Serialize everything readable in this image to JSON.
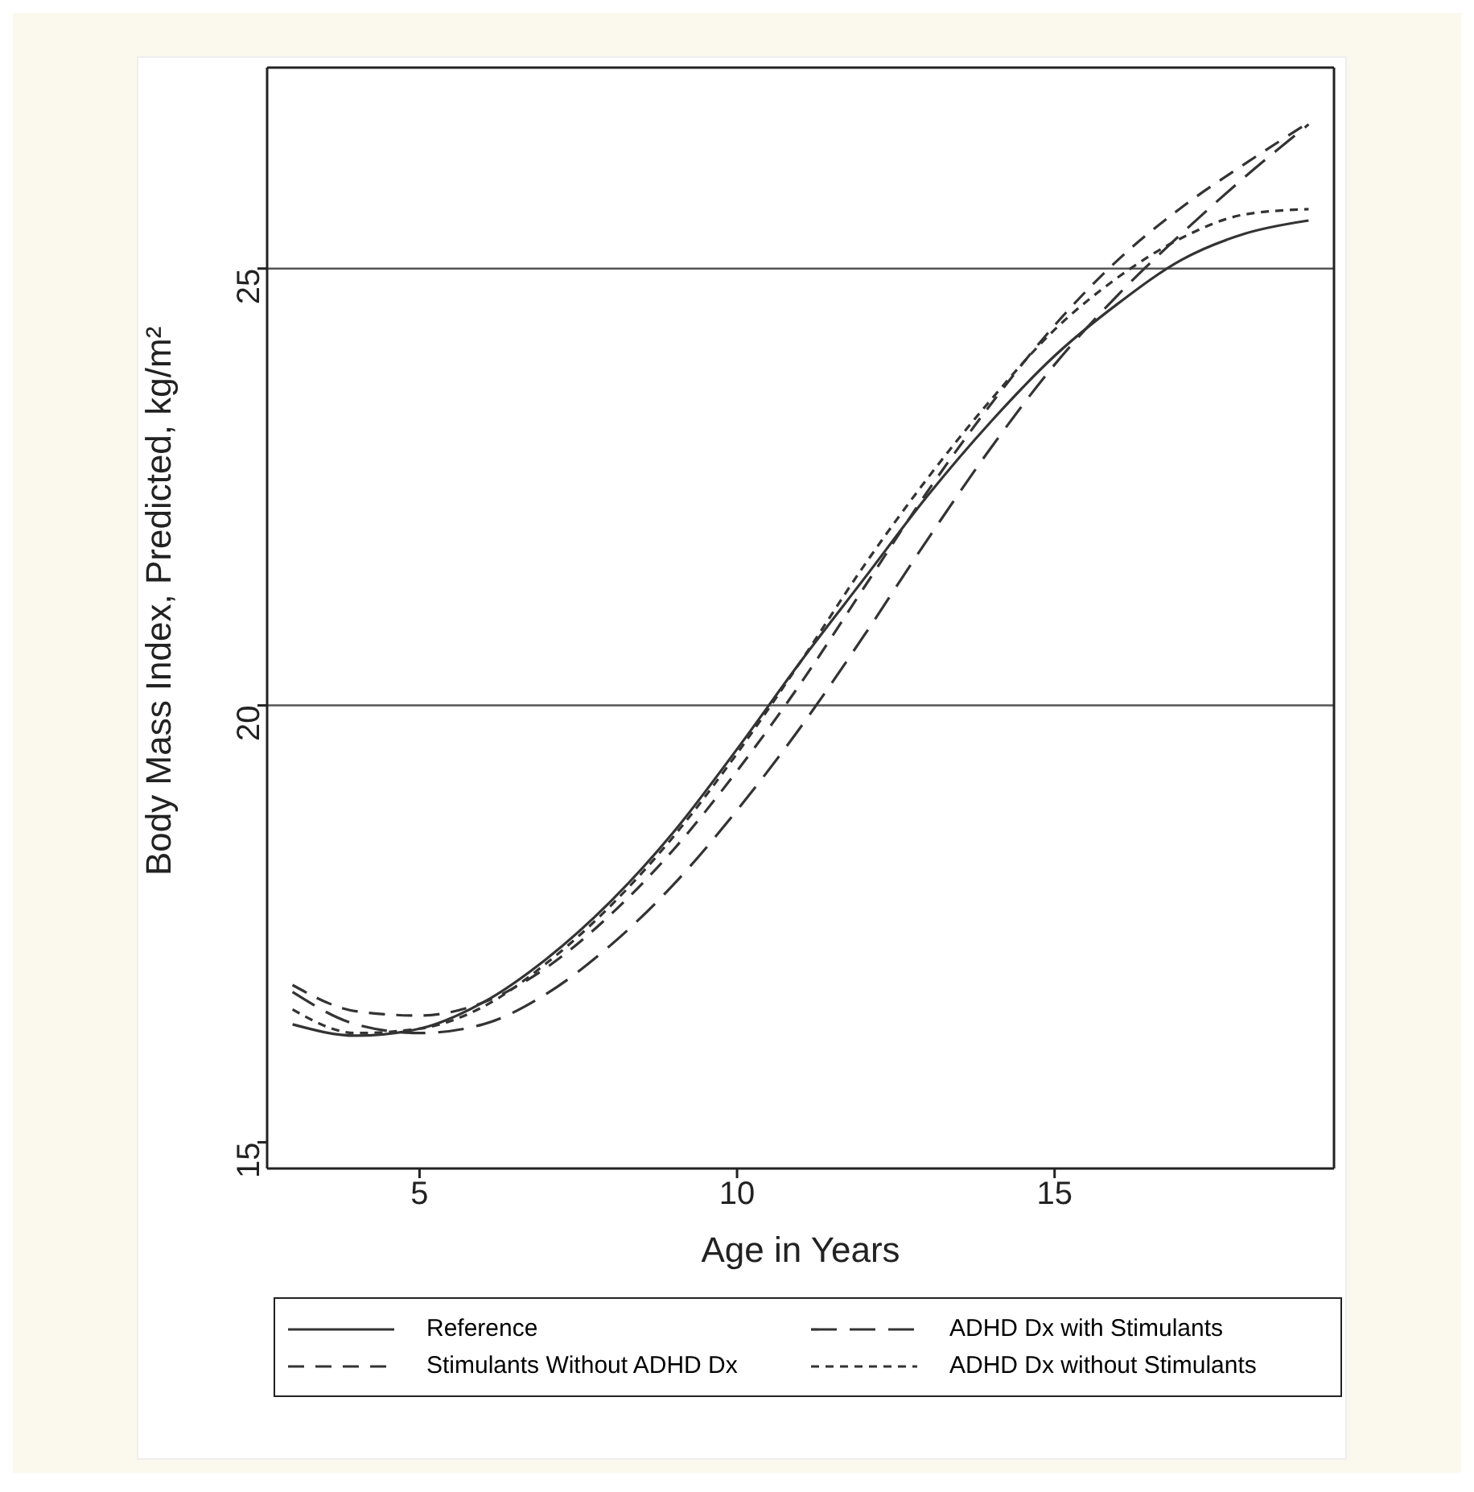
{
  "chart_data": {
    "type": "line",
    "xlabel": "Age in Years",
    "ylabel": "Body Mass Index, Predicted, kg/m²",
    "x": [
      3,
      4,
      5,
      6,
      7,
      8,
      9,
      10,
      11,
      12,
      13,
      14,
      15,
      16,
      17,
      18,
      19
    ],
    "xlim": [
      2.6,
      19.4
    ],
    "xticks": [
      5,
      10,
      15
    ],
    "ylim": [
      14.7,
      27.3
    ],
    "yticks": [
      15,
      20,
      25
    ],
    "series": [
      {
        "name": "Reference",
        "color": "#333333",
        "line_style": "solid",
        "values": [
          16.35,
          16.22,
          16.3,
          16.6,
          17.1,
          17.75,
          18.55,
          19.5,
          20.5,
          21.45,
          22.4,
          23.25,
          24.0,
          24.6,
          25.1,
          25.4,
          25.55
        ]
      },
      {
        "name": "Stimulants Without ADHD Dx",
        "color": "#333333",
        "line_style": "dashed",
        "values": [
          16.8,
          16.5,
          16.45,
          16.6,
          17.0,
          17.6,
          18.35,
          19.25,
          20.25,
          21.35,
          22.45,
          23.45,
          24.35,
          25.1,
          25.7,
          26.2,
          26.67
        ]
      },
      {
        "name": "ADHD Dx with Stimulants",
        "color": "#333333",
        "line_style": "dashed",
        "values": [
          16.72,
          16.35,
          16.25,
          16.35,
          16.7,
          17.25,
          17.95,
          18.8,
          19.75,
          20.8,
          21.9,
          22.95,
          23.9,
          24.7,
          25.4,
          26.05,
          26.65
        ]
      },
      {
        "name": "ADHD Dx without Stimulants",
        "color": "#333333",
        "line_style": "dotted",
        "values": [
          16.52,
          16.25,
          16.3,
          16.55,
          17.05,
          17.7,
          18.5,
          19.45,
          20.5,
          21.6,
          22.6,
          23.5,
          24.3,
          24.9,
          25.35,
          25.62,
          25.68
        ]
      }
    ],
    "ref_lines": [
      {
        "axis": "y",
        "value": 20,
        "color": "#555555"
      },
      {
        "axis": "y",
        "value": 25,
        "color": "#555555"
      }
    ],
    "grid": false,
    "marker": "none",
    "legend": "bottom"
  }
}
